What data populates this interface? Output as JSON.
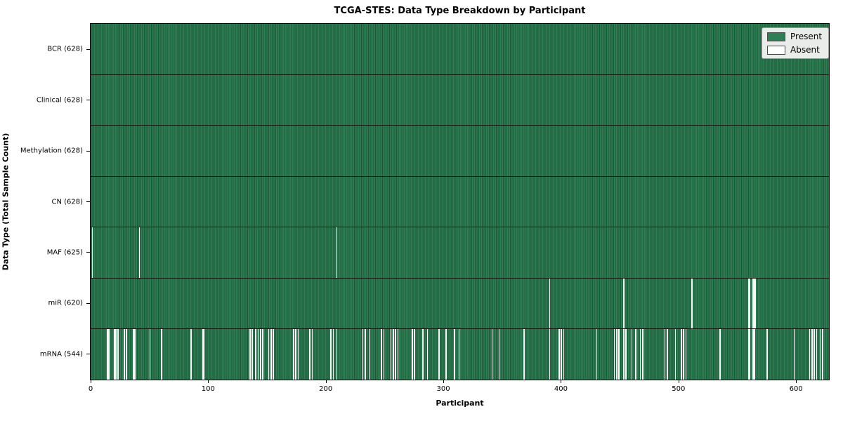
{
  "figure": {
    "title": "TCGA-STES: Data Type Breakdown by Participant",
    "xlabel": "Participant",
    "ylabel": "Data Type (Total Sample Count)"
  },
  "legend": {
    "present_label": "Present",
    "absent_label": "Absent"
  },
  "colors": {
    "present_fill": "#2d7f54",
    "present_edge": "#1d5738",
    "absent_fill": "#f7f7f7",
    "frame": "#000000",
    "legend_bg": "#e9ece9",
    "legend_border": "#9a9a9a"
  },
  "chart_data": {
    "type": "heatmap",
    "title": "TCGA-STES: Data Type Breakdown by Participant",
    "xlabel": "Participant",
    "ylabel": "Data Type (Total Sample Count)",
    "legend": [
      "Present",
      "Absent"
    ],
    "legend_position": "upper right",
    "grid": false,
    "n_participants": 628,
    "x_ticks": [
      0,
      100,
      200,
      300,
      400,
      500,
      600
    ],
    "xlim": [
      0,
      628
    ],
    "rows": [
      {
        "label": "BCR (628)",
        "data_type": "BCR",
        "present_count": 628,
        "absent_count": 0,
        "absent_participants": []
      },
      {
        "label": "Clinical (628)",
        "data_type": "Clinical",
        "present_count": 628,
        "absent_count": 0,
        "absent_participants": []
      },
      {
        "label": "Methylation (628)",
        "data_type": "Methylation",
        "present_count": 628,
        "absent_count": 0,
        "absent_participants": []
      },
      {
        "label": "CN (628)",
        "data_type": "CN",
        "present_count": 628,
        "absent_count": 0,
        "absent_participants": []
      },
      {
        "label": "MAF (625)",
        "data_type": "MAF",
        "present_count": 625,
        "absent_count": 3,
        "absent_participants": [
          1,
          41,
          209
        ]
      },
      {
        "label": "miR (620)",
        "data_type": "miR",
        "present_count": 620,
        "absent_count": 8,
        "absent_participants": [
          390,
          453,
          511,
          559,
          560,
          563,
          564,
          565
        ]
      },
      {
        "label": "mRNA (544)",
        "data_type": "mRNA",
        "present_count": 544,
        "absent_count": 84,
        "absent_participants": [
          14,
          15,
          20,
          21,
          23,
          28,
          30,
          36,
          37,
          50,
          60,
          85,
          95,
          96,
          135,
          137,
          140,
          142,
          144,
          146,
          151,
          153,
          155,
          172,
          174,
          176,
          186,
          188,
          204,
          206,
          209,
          231,
          233,
          237,
          247,
          249,
          255,
          257,
          259,
          261,
          273,
          275,
          282,
          286,
          296,
          302,
          309,
          313,
          341,
          347,
          368,
          390,
          398,
          400,
          402,
          430,
          445,
          447,
          449,
          453,
          455,
          460,
          463,
          467,
          469,
          488,
          490,
          497,
          502,
          504,
          506,
          535,
          559,
          560,
          563,
          564,
          575,
          598,
          611,
          613,
          615,
          617,
          620,
          622
        ]
      }
    ]
  }
}
